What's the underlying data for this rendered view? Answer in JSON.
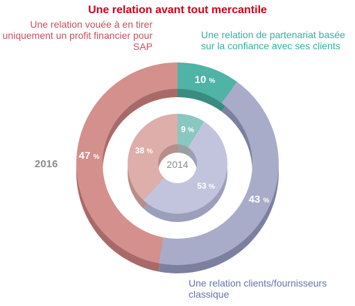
{
  "chart_data": {
    "type": "pie",
    "subtype": "nested-donut",
    "title": "Une relation avant tout mercantile",
    "categories": [
      "Une relation de partenariat basée sur la confiance avec ses clients",
      "Une relation clients/fournisseurs classique",
      "Une relation vouée à en tirer uniquement un profit financier pour SAP"
    ],
    "series": [
      {
        "name": "2016",
        "ring": "outer",
        "values": [
          10,
          43,
          47
        ]
      },
      {
        "name": "2014",
        "ring": "inner",
        "values": [
          9,
          53,
          38
        ]
      }
    ],
    "unit": "%",
    "colors": {
      "outer": [
        "#4fb3a6",
        "#a8acc9",
        "#d3908d"
      ],
      "inner": [
        "#88c8c0",
        "#c2c4dd",
        "#ddaeaa"
      ],
      "outer_shadow": [
        "#3a8b80",
        "#7c809f",
        "#a86a68"
      ],
      "inner_shadow": [
        "#9aa0a0",
        "#9c9fb9",
        "#b88d8a"
      ]
    },
    "legend": "none"
  },
  "labels": {
    "mercantile": "Une relation vouée à en tirer uniquement un profit financier pour SAP",
    "partenariat": "Une relation de partenariat basée sur la confiance avec ses clients",
    "classique": "Une relation clients/fournisseurs classique"
  }
}
